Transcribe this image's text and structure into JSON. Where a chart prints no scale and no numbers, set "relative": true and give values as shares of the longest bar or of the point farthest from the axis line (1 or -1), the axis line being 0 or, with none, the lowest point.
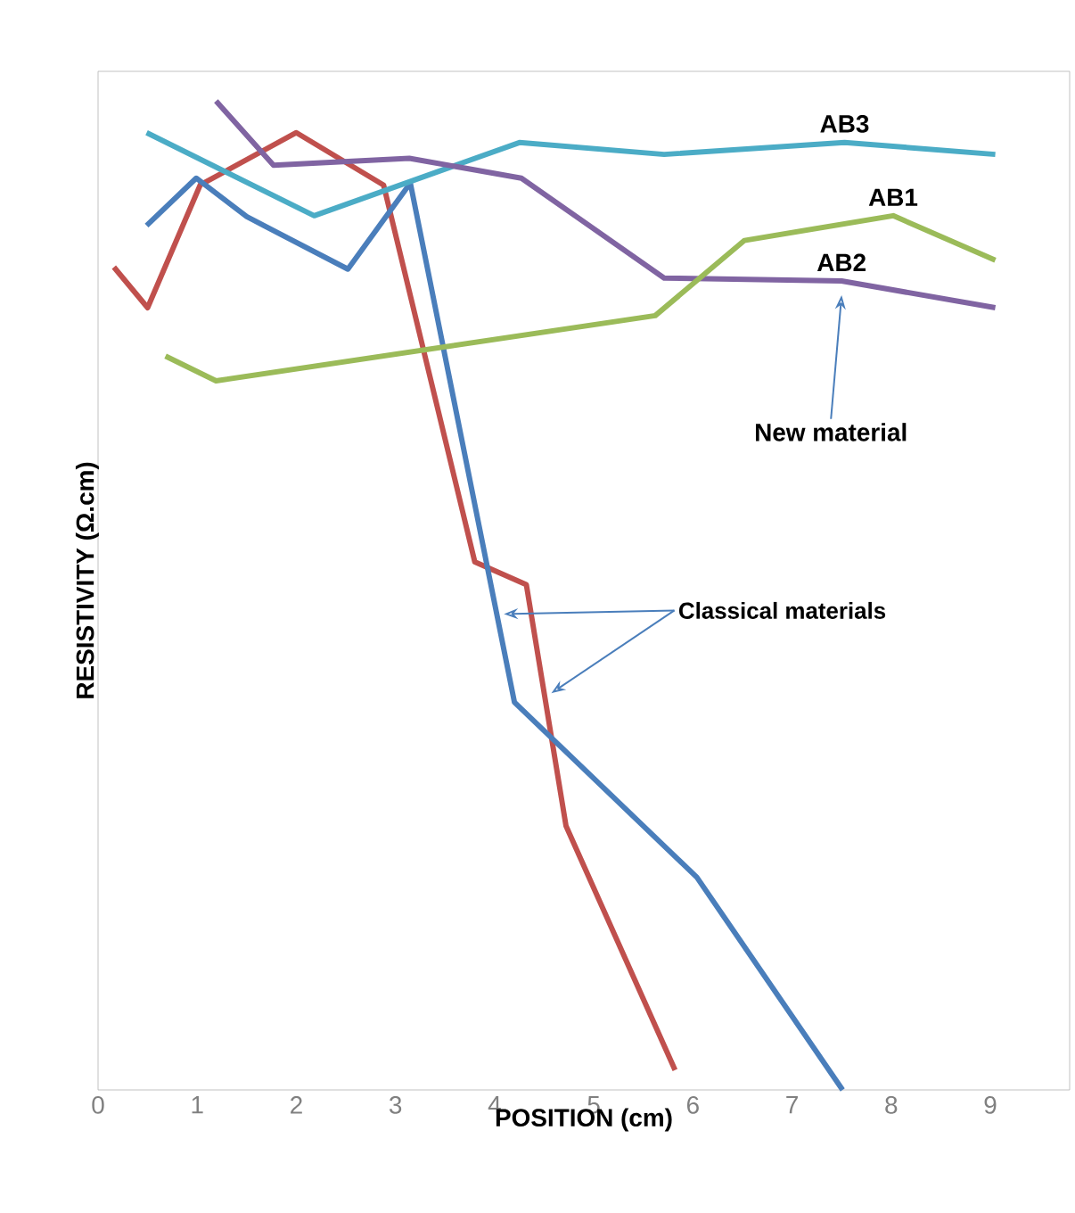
{
  "chart_data": {
    "type": "line",
    "relative": true,
    "xlabel": "POSITION (cm)",
    "ylabel": "RESISTIVITY (Ω.cm)",
    "xlim": [
      0,
      9.8
    ],
    "xticks": [
      0,
      1,
      2,
      3,
      4,
      5,
      6,
      7,
      8,
      9
    ],
    "grid": false,
    "marker": "none",
    "line_style": "solid",
    "series": [
      {
        "color": "#c0504d",
        "x": [
          0.16,
          0.5,
          1.03,
          2.0,
          2.88,
          3.8,
          4.32,
          4.72,
          5.82
        ],
        "values": [
          0.832,
          0.791,
          0.915,
          0.968,
          0.915,
          0.534,
          0.511,
          0.267,
          0.02
        ]
      },
      {
        "color": "#4a7ebb",
        "x": [
          0.49,
          0.99,
          1.5,
          2.52,
          3.15,
          4.2,
          6.04,
          7.51
        ],
        "values": [
          0.874,
          0.922,
          0.883,
          0.83,
          0.917,
          0.392,
          0.215,
          0.0
        ]
      },
      {
        "name": "AB3",
        "color": "#4bacc6",
        "x": [
          0.49,
          2.18,
          4.25,
          5.71,
          7.53,
          9.05
        ],
        "values": [
          0.968,
          0.884,
          0.958,
          0.946,
          0.958,
          0.946
        ]
      },
      {
        "name": "AB2",
        "color": "#8064a2",
        "x": [
          1.19,
          1.77,
          3.14,
          4.27,
          5.71,
          7.5,
          9.05
        ],
        "values": [
          1.0,
          0.935,
          0.942,
          0.922,
          0.821,
          0.818,
          0.791
        ]
      },
      {
        "name": "AB1",
        "color": "#9bbb59",
        "x": [
          0.68,
          1.19,
          5.62,
          6.52,
          8.02,
          9.05
        ],
        "values": [
          0.742,
          0.717,
          0.783,
          0.859,
          0.884,
          0.839
        ]
      }
    ],
    "annotations": [
      "New material",
      "Classical materials"
    ]
  }
}
